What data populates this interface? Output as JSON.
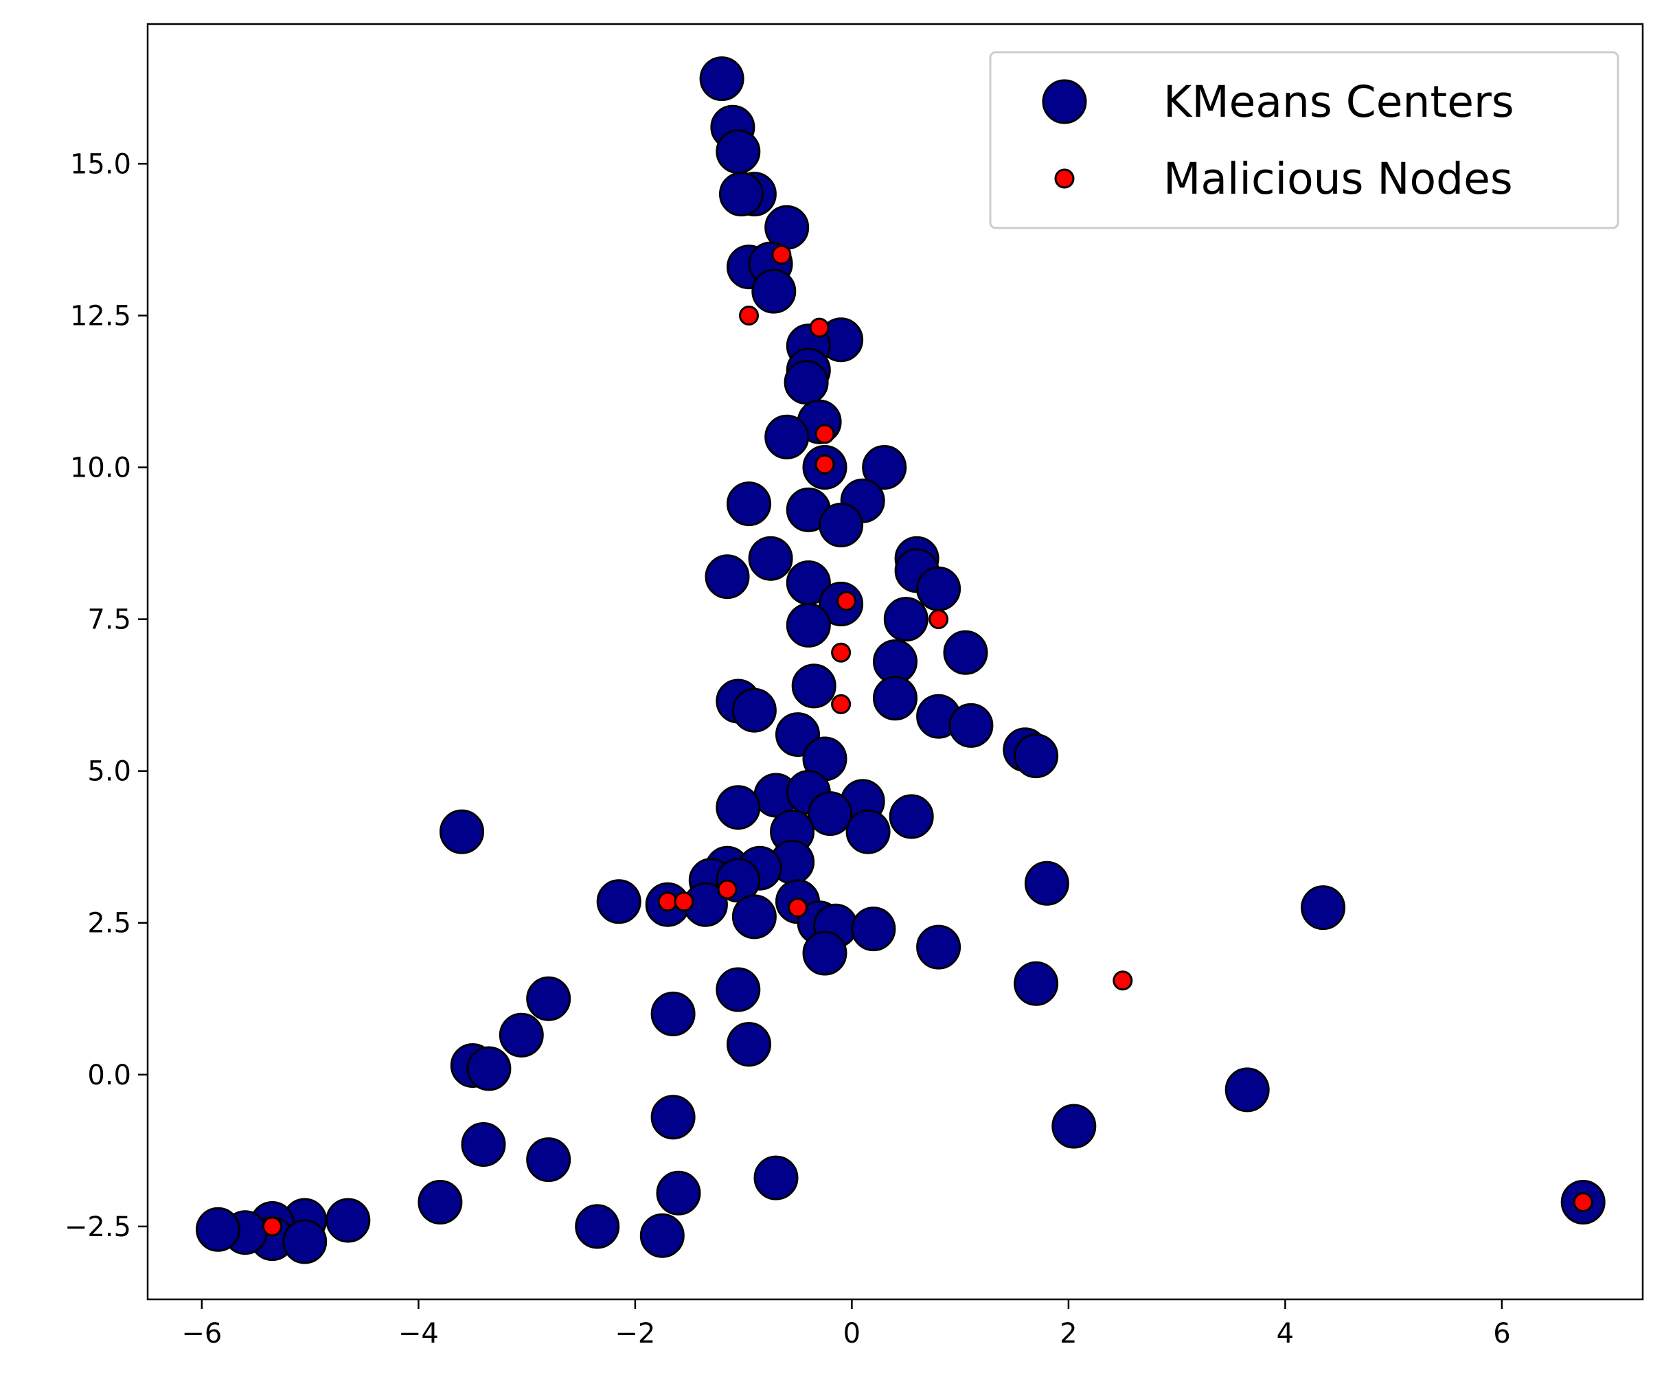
{
  "chart_data": {
    "type": "scatter",
    "title": "",
    "xlabel": "",
    "ylabel": "",
    "xlim": [
      -6.5,
      7.3
    ],
    "ylim": [
      -3.7,
      17.3
    ],
    "x_ticks": [
      -6,
      -4,
      -2,
      0,
      2,
      4,
      6
    ],
    "x_tick_labels": [
      "−6",
      "−4",
      "−2",
      "0",
      "2",
      "4",
      "6"
    ],
    "y_ticks": [
      -2.5,
      0.0,
      2.5,
      5.0,
      7.5,
      10.0,
      12.5,
      15.0
    ],
    "y_tick_labels": [
      "−2.5",
      "0.0",
      "2.5",
      "5.0",
      "7.5",
      "10.0",
      "12.5",
      "15.0"
    ],
    "grid": false,
    "legend_position": "top-right",
    "series": [
      {
        "name": "KMeans Centers",
        "color": "#00008b",
        "edge_color": "#000000",
        "marker": "large-circle",
        "points": [
          [
            -1.2,
            16.4
          ],
          [
            -1.1,
            15.6
          ],
          [
            -1.05,
            15.2
          ],
          [
            -0.9,
            14.5
          ],
          [
            -1.02,
            14.5
          ],
          [
            -0.6,
            13.95
          ],
          [
            -0.95,
            13.3
          ],
          [
            -0.75,
            13.35
          ],
          [
            -0.72,
            12.9
          ],
          [
            -0.1,
            12.1
          ],
          [
            -0.4,
            12.0
          ],
          [
            -0.4,
            11.6
          ],
          [
            -0.42,
            11.4
          ],
          [
            -0.3,
            10.75
          ],
          [
            -0.6,
            10.5
          ],
          [
            -0.25,
            10.0
          ],
          [
            0.3,
            10.0
          ],
          [
            -0.95,
            9.4
          ],
          [
            0.1,
            9.45
          ],
          [
            -0.4,
            9.3
          ],
          [
            -0.1,
            9.05
          ],
          [
            0.6,
            8.5
          ],
          [
            -0.75,
            8.5
          ],
          [
            -1.15,
            8.2
          ],
          [
            0.6,
            8.3
          ],
          [
            -0.4,
            8.1
          ],
          [
            0.8,
            8.0
          ],
          [
            -0.1,
            7.75
          ],
          [
            0.5,
            7.5
          ],
          [
            -0.4,
            7.4
          ],
          [
            1.05,
            6.95
          ],
          [
            0.4,
            6.8
          ],
          [
            -0.35,
            6.4
          ],
          [
            -1.05,
            6.15
          ],
          [
            -0.9,
            6.0
          ],
          [
            0.4,
            6.2
          ],
          [
            0.8,
            5.9
          ],
          [
            1.1,
            5.75
          ],
          [
            -0.5,
            5.6
          ],
          [
            1.6,
            5.35
          ],
          [
            1.7,
            5.25
          ],
          [
            -0.25,
            5.2
          ],
          [
            -0.7,
            4.6
          ],
          [
            -0.4,
            4.65
          ],
          [
            0.1,
            4.5
          ],
          [
            -1.05,
            4.4
          ],
          [
            -0.2,
            4.3
          ],
          [
            0.55,
            4.25
          ],
          [
            0.15,
            4.0
          ],
          [
            -0.55,
            4.0
          ],
          [
            -3.6,
            4.0
          ],
          [
            -0.55,
            3.5
          ],
          [
            -1.15,
            3.4
          ],
          [
            -0.85,
            3.4
          ],
          [
            -1.3,
            3.2
          ],
          [
            -1.05,
            3.2
          ],
          [
            1.8,
            3.15
          ],
          [
            -2.15,
            2.85
          ],
          [
            -1.7,
            2.8
          ],
          [
            -1.35,
            2.8
          ],
          [
            -0.5,
            2.85
          ],
          [
            -0.9,
            2.6
          ],
          [
            -0.3,
            2.5
          ],
          [
            -0.15,
            2.45
          ],
          [
            0.2,
            2.4
          ],
          [
            -0.25,
            2.0
          ],
          [
            0.8,
            2.1
          ],
          [
            4.35,
            2.75
          ],
          [
            1.7,
            1.5
          ],
          [
            -1.05,
            1.4
          ],
          [
            -1.65,
            1.0
          ],
          [
            -2.8,
            1.25
          ],
          [
            -3.05,
            0.65
          ],
          [
            -3.5,
            0.15
          ],
          [
            -3.35,
            0.1
          ],
          [
            -0.95,
            0.5
          ],
          [
            3.65,
            -0.25
          ],
          [
            2.05,
            -0.85
          ],
          [
            -1.65,
            -0.7
          ],
          [
            -3.4,
            -1.15
          ],
          [
            -2.8,
            -1.4
          ],
          [
            -0.7,
            -1.7
          ],
          [
            -1.6,
            -1.95
          ],
          [
            -3.8,
            -2.1
          ],
          [
            6.75,
            -2.1
          ],
          [
            -2.35,
            -2.5
          ],
          [
            -1.75,
            -2.65
          ],
          [
            -4.65,
            -2.4
          ],
          [
            -5.05,
            -2.4
          ],
          [
            -5.35,
            -2.45
          ],
          [
            -5.35,
            -2.7
          ],
          [
            -5.05,
            -2.75
          ],
          [
            -5.6,
            -2.6
          ],
          [
            -5.85,
            -2.55
          ]
        ]
      },
      {
        "name": "Malicious Nodes",
        "color": "#ff0000",
        "edge_color": "#000000",
        "marker": "small-circle",
        "points": [
          [
            -0.65,
            13.5
          ],
          [
            -0.95,
            12.5
          ],
          [
            -0.3,
            12.3
          ],
          [
            -0.25,
            10.55
          ],
          [
            -0.25,
            10.05
          ],
          [
            -0.05,
            7.8
          ],
          [
            0.8,
            7.5
          ],
          [
            -0.1,
            6.95
          ],
          [
            -0.1,
            6.1
          ],
          [
            -1.15,
            3.05
          ],
          [
            -1.7,
            2.85
          ],
          [
            -1.55,
            2.85
          ],
          [
            -0.5,
            2.75
          ],
          [
            2.5,
            1.55
          ],
          [
            6.75,
            -2.1
          ],
          [
            -5.35,
            -2.5
          ]
        ]
      }
    ]
  }
}
